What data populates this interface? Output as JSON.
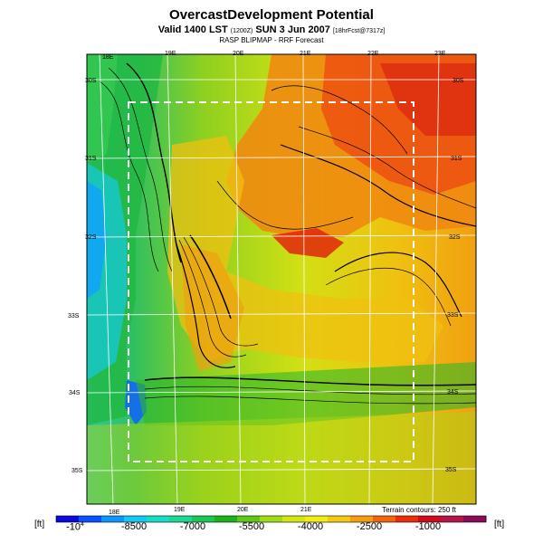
{
  "header": {
    "title": "OvercastDevelopment Potential",
    "valid_prefix": "Valid 1400 LST",
    "valid_small": "(1200Z)",
    "valid_mid": "SUN 3 Jun 2007",
    "valid_suffix": "[18hrFcst@7317z]",
    "subtitle": "RASP BLIPMAP - RRF Forecast"
  },
  "axes": {
    "lon_top": [
      "18E",
      "19E",
      "20E",
      "21E",
      "22E",
      "23E"
    ],
    "lon_bottom": [
      "18E",
      "19E",
      "20E",
      "21E"
    ],
    "lat_left": [
      "30S",
      "31S",
      "32S",
      "33S",
      "34S",
      "35S"
    ],
    "lat_right": [
      "30S",
      "31S",
      "32S",
      "33S",
      "34S",
      "35S"
    ]
  },
  "footer": {
    "terrain_note": "Terrain contours: 250 ft",
    "unit_left": "[ft]",
    "unit_right": "[ft]"
  },
  "colorbar": {
    "colors": [
      "#0a0ad8",
      "#0a50ff",
      "#0a96ff",
      "#14c8f5",
      "#16dcc8",
      "#1ad890",
      "#18c850",
      "#1ab41a",
      "#5fc814",
      "#a0dc14",
      "#d2e614",
      "#f5eb14",
      "#f5c814",
      "#f59c0f",
      "#f5640a",
      "#eb2d0a",
      "#d20a1e",
      "#b4144b",
      "#8c0a5a"
    ],
    "labels": [
      {
        "text": "-10",
        "exp": "4"
      },
      {
        "text": "-8500"
      },
      {
        "text": "-7000"
      },
      {
        "text": "-5500"
      },
      {
        "text": "-4000"
      },
      {
        "text": "-2500"
      },
      {
        "text": "-1000"
      }
    ]
  }
}
